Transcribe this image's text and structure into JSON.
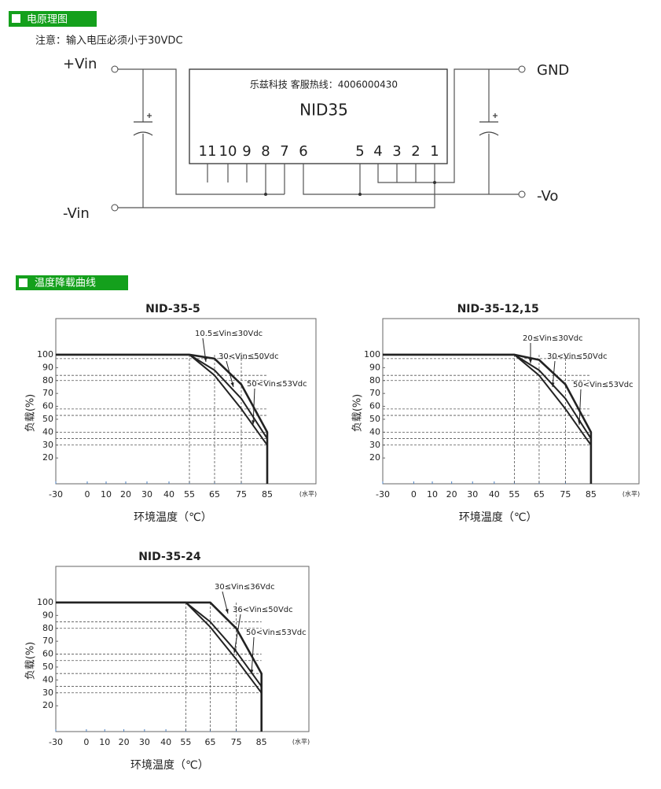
{
  "circuit": {
    "header": "电原理图",
    "note": "注意：输入电压必须小于30VDC",
    "vin_plus": "+Vin",
    "vin_minus": "-Vin",
    "gnd": "GND",
    "vo_minus": "-Vo",
    "module_hotline": "乐兹科技 客服热线：4006000430",
    "module_name": "NID35",
    "pins": [
      "11",
      "10",
      "9",
      "8",
      "7",
      "6",
      "5",
      "4",
      "3",
      "2",
      "1"
    ]
  },
  "derating_header": "温度降载曲线",
  "chart_data": [
    {
      "type": "line",
      "title": "NID-35-5",
      "y_label": "负载(%)",
      "x_label": "环境温度（℃）",
      "x_note": "(水平)",
      "color": "#222",
      "xlim": [
        -30,
        100
      ],
      "xticks": [
        -30,
        0,
        10,
        20,
        30,
        40,
        55,
        65,
        75,
        85
      ],
      "ylim": [
        0,
        128
      ],
      "yticks": [
        20,
        30,
        40,
        50,
        60,
        70,
        80,
        90,
        100
      ],
      "ref_h": [
        97,
        84,
        80,
        58,
        53,
        40,
        35,
        30
      ],
      "ref_v": [
        55,
        65,
        75
      ],
      "series": [
        {
          "name": "10.5≤Vin≤30Vdc",
          "x": [
            -30,
            55,
            65,
            75,
            85,
            85
          ],
          "values": [
            100,
            100,
            97,
            77,
            40,
            0
          ]
        },
        {
          "name": "30<Vin≤50Vdc",
          "x": [
            -30,
            55,
            65,
            75,
            85
          ],
          "values": [
            100,
            100,
            88,
            66,
            35
          ]
        },
        {
          "name": "50<Vin≤53Vdc",
          "x": [
            -30,
            55,
            65,
            75,
            85
          ],
          "values": [
            100,
            100,
            84,
            58,
            30
          ]
        }
      ]
    },
    {
      "type": "line",
      "title": "NID-35-12,15",
      "y_label": "负载(%)",
      "x_label": "环境温度（℃）",
      "x_note": "(水平)",
      "color": "#222",
      "xlim": [
        -30,
        100
      ],
      "xticks": [
        -30,
        0,
        10,
        20,
        30,
        40,
        55,
        65,
        75,
        85
      ],
      "ylim": [
        0,
        128
      ],
      "yticks": [
        20,
        30,
        40,
        50,
        60,
        70,
        80,
        90,
        100
      ],
      "ref_h": [
        97,
        84,
        80,
        58,
        53,
        40,
        35,
        30
      ],
      "ref_v": [
        55,
        65,
        75
      ],
      "series": [
        {
          "name": "20≤Vin≤30Vdc",
          "x": [
            -30,
            55,
            65,
            75,
            85,
            85
          ],
          "values": [
            100,
            100,
            96,
            77,
            40,
            0
          ]
        },
        {
          "name": "30<Vin≤50Vdc",
          "x": [
            -30,
            55,
            65,
            75,
            85
          ],
          "values": [
            100,
            100,
            88,
            66,
            35
          ]
        },
        {
          "name": "50<Vin≤53Vdc",
          "x": [
            -30,
            55,
            65,
            75,
            85
          ],
          "values": [
            100,
            100,
            84,
            58,
            30
          ]
        }
      ]
    },
    {
      "type": "line",
      "title": "NID-35-24",
      "y_label": "负载(%)",
      "x_label": "环境温度（℃）",
      "x_note": "(水平)",
      "color": "#222",
      "xlim": [
        -30,
        100
      ],
      "xticks": [
        -30,
        0,
        10,
        20,
        30,
        40,
        55,
        65,
        75,
        85
      ],
      "ylim": [
        0,
        128
      ],
      "yticks": [
        20,
        30,
        40,
        50,
        60,
        70,
        80,
        90,
        100
      ],
      "ref_h": [
        85,
        80,
        60,
        55,
        45,
        35,
        30
      ],
      "ref_v": [
        55,
        65,
        75
      ],
      "series": [
        {
          "name": "30≤Vin≤36Vdc",
          "x": [
            -30,
            65,
            75,
            85,
            85
          ],
          "values": [
            100,
            100,
            80,
            45,
            0
          ]
        },
        {
          "name": "36<Vin≤50Vdc",
          "x": [
            -30,
            55,
            65,
            75,
            85
          ],
          "values": [
            100,
            100,
            85,
            62,
            35
          ]
        },
        {
          "name": "50<Vin≤53Vdc",
          "x": [
            -30,
            55,
            65,
            75,
            85
          ],
          "values": [
            100,
            100,
            81,
            56,
            30
          ]
        }
      ]
    }
  ]
}
